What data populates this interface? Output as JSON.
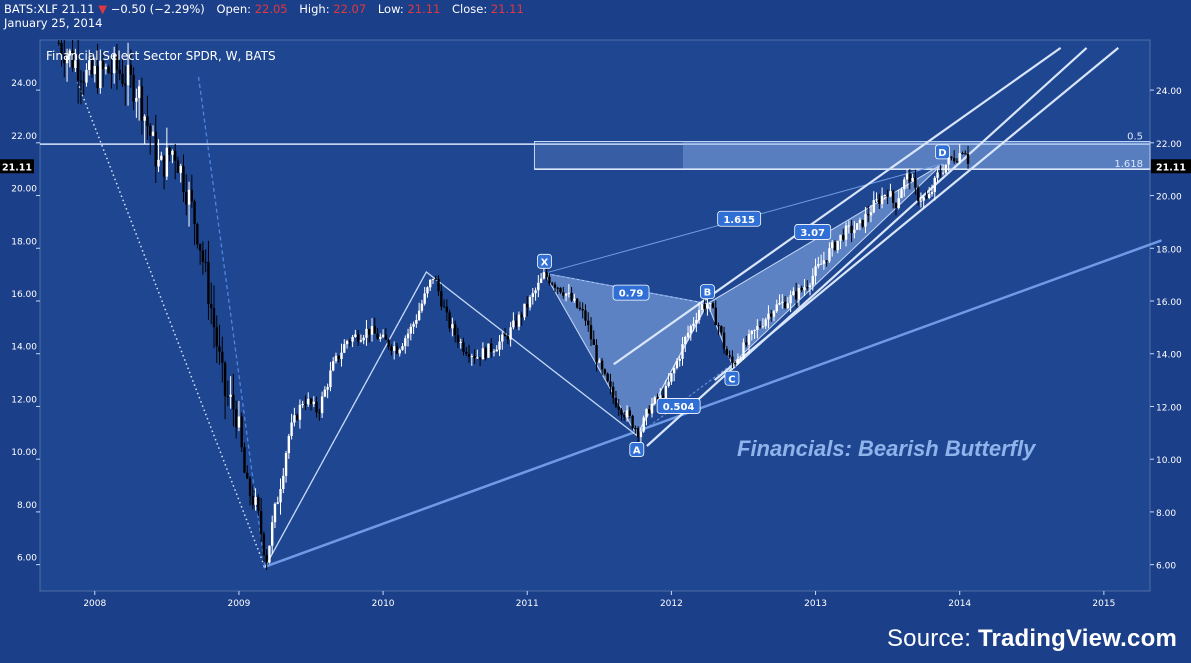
{
  "header": {
    "symbol": "BATS:XLF",
    "last": "21.11",
    "change_arrow": "▼",
    "change": "−0.50 (−2.29%)",
    "open_label": "Open:",
    "open": "22.05",
    "high_label": "High:",
    "high": "22.07",
    "low_label": "Low:",
    "low": "21.11",
    "close_label": "Close:",
    "close": "21.11",
    "date": "January 25, 2014"
  },
  "colors": {
    "background": "#1c3f8a",
    "plot": "#1f4690",
    "up": "#ffffff",
    "down": "#000000",
    "pattern": "#8fb4ec",
    "line": "#c6d8f6",
    "accent": "#2f6fd6"
  },
  "source": {
    "prefix": "Source: ",
    "brand": "TradingView.com"
  },
  "chart_data": {
    "type": "candlestick",
    "title": "Financial Select Sector SPDR, W, BATS",
    "annotation_title": "Financials: Bearish Butterfly",
    "x_ticks": [
      "2008",
      "2009",
      "2010",
      "2011",
      "2012",
      "2013",
      "2014",
      "2015"
    ],
    "y_ticks": [
      "6.00",
      "8.00",
      "10.00",
      "12.00",
      "14.00",
      "16.00",
      "18.00",
      "20.00",
      "22.00",
      "24.00"
    ],
    "xlim": [
      2007.62,
      2015.32
    ],
    "ylim": [
      5.0,
      25.9
    ],
    "last_price": {
      "label": "21.11",
      "value": 21.11
    },
    "price_path": [
      [
        2007.75,
        25.8
      ],
      [
        2007.95,
        24.5
      ],
      [
        2008.15,
        24.8
      ],
      [
        2008.3,
        24.0
      ],
      [
        2008.45,
        21.0
      ],
      [
        2008.55,
        21.8
      ],
      [
        2008.65,
        20.0
      ],
      [
        2008.72,
        18.5
      ],
      [
        2008.8,
        16.0
      ],
      [
        2008.9,
        12.5
      ],
      [
        2008.98,
        11.8
      ],
      [
        2009.05,
        9.0
      ],
      [
        2009.12,
        8.2
      ],
      [
        2009.19,
        6.2
      ],
      [
        2009.25,
        8.0
      ],
      [
        2009.35,
        11.0
      ],
      [
        2009.45,
        12.3
      ],
      [
        2009.55,
        11.8
      ],
      [
        2009.65,
        13.5
      ],
      [
        2009.75,
        14.5
      ],
      [
        2009.9,
        14.9
      ],
      [
        2010.0,
        14.5
      ],
      [
        2010.1,
        14.2
      ],
      [
        2010.2,
        15.0
      ],
      [
        2010.3,
        16.3
      ],
      [
        2010.35,
        17.0
      ],
      [
        2010.45,
        15.2
      ],
      [
        2010.55,
        14.3
      ],
      [
        2010.65,
        13.9
      ],
      [
        2010.75,
        14.2
      ],
      [
        2010.85,
        14.6
      ],
      [
        2010.95,
        15.4
      ],
      [
        2011.05,
        16.3
      ],
      [
        2011.12,
        17.0
      ],
      [
        2011.25,
        16.4
      ],
      [
        2011.4,
        15.4
      ],
      [
        2011.5,
        13.5
      ],
      [
        2011.6,
        12.3
      ],
      [
        2011.7,
        11.6
      ],
      [
        2011.78,
        11.0
      ],
      [
        2011.85,
        12.0
      ],
      [
        2011.95,
        12.4
      ],
      [
        2012.1,
        14.6
      ],
      [
        2012.2,
        15.8
      ],
      [
        2012.25,
        15.9
      ],
      [
        2012.32,
        15.2
      ],
      [
        2012.38,
        14.0
      ],
      [
        2012.42,
        13.6
      ],
      [
        2012.5,
        14.2
      ],
      [
        2012.6,
        15.0
      ],
      [
        2012.7,
        15.7
      ],
      [
        2012.8,
        16.0
      ],
      [
        2012.9,
        16.4
      ],
      [
        2013.0,
        17.1
      ],
      [
        2013.1,
        17.9
      ],
      [
        2013.2,
        18.6
      ],
      [
        2013.3,
        18.8
      ],
      [
        2013.4,
        19.6
      ],
      [
        2013.5,
        20.2
      ],
      [
        2013.55,
        19.6
      ],
      [
        2013.6,
        20.4
      ],
      [
        2013.65,
        20.8
      ],
      [
        2013.7,
        20.0
      ],
      [
        2013.78,
        19.8
      ],
      [
        2013.85,
        20.8
      ],
      [
        2013.92,
        21.3
      ],
      [
        2014.0,
        21.6
      ],
      [
        2014.03,
        21.9
      ],
      [
        2014.07,
        21.11
      ]
    ],
    "harmonic_pattern": {
      "name": "Bearish Butterfly",
      "points": [
        {
          "label": "X",
          "date": 2011.12,
          "value": 17.05
        },
        {
          "label": "A",
          "date": 2011.76,
          "value": 10.9
        },
        {
          "label": "B",
          "date": 2012.25,
          "value": 15.9
        },
        {
          "label": "C",
          "date": 2012.42,
          "value": 13.6
        },
        {
          "label": "D",
          "date": 2013.88,
          "value": 21.2
        }
      ],
      "ratios": [
        {
          "label": "0.79",
          "date": 2011.72,
          "value": 16.3
        },
        {
          "label": "0.504",
          "date": 2012.05,
          "value": 12.0
        },
        {
          "label": "3.07",
          "date": 2012.98,
          "value": 18.6
        },
        {
          "label": "1.615",
          "date": 2012.47,
          "value": 19.1
        }
      ]
    },
    "fib_levels": [
      {
        "label": "0.5",
        "value": 22.05
      },
      {
        "label": "1.618",
        "value": 21.0
      }
    ],
    "horizontal_line": {
      "value": 21.95
    },
    "trendlines": [
      {
        "from": [
          2009.17,
          5.9
        ],
        "to": [
          2015.4,
          18.3
        ]
      },
      {
        "from": [
          2011.83,
          10.5
        ],
        "to": [
          2014.88,
          25.6
        ]
      },
      {
        "from": [
          2012.3,
          13.0
        ],
        "to": [
          2015.1,
          25.6
        ]
      },
      {
        "from": [
          2011.6,
          13.6
        ],
        "to": [
          2014.7,
          25.6
        ]
      }
    ],
    "dotted_trendline": {
      "from": [
        2007.88,
        24.3
      ],
      "to": [
        2009.18,
        5.9
      ]
    },
    "dashed_lines": [
      {
        "from": [
          2008.72,
          24.5
        ],
        "to": [
          2009.18,
          5.9
        ]
      },
      {
        "from": [
          2009.18,
          5.9
        ],
        "to": [
          2010.3,
          17.1
        ]
      }
    ],
    "zigzag": [
      [
        2009.18,
        5.9
      ],
      [
        2010.3,
        17.1
      ],
      [
        2011.76,
        10.9
      ],
      [
        2012.25,
        15.9
      ]
    ]
  }
}
